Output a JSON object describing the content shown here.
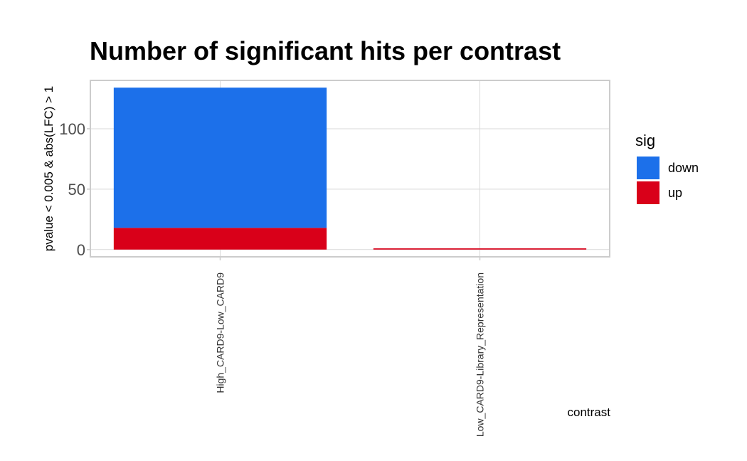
{
  "chart_data": {
    "type": "bar",
    "stacked": true,
    "title": "Number of significant hits per contrast",
    "xlabel": "contrast",
    "ylabel": "pvalue < 0.005 & abs(LFC)  > 1",
    "categories": [
      "High_CARD9-Low_CARD9",
      "Low_CARD9-Library_Representation"
    ],
    "series": [
      {
        "name": "up",
        "color": "#d90019",
        "values": [
          18,
          1
        ]
      },
      {
        "name": "down",
        "color": "#1c70ea",
        "values": [
          116,
          0
        ]
      }
    ],
    "yticks": [
      0,
      50,
      100
    ],
    "ylim": [
      -6,
      140
    ],
    "grid": true,
    "legend": {
      "title": "sig",
      "position": "right",
      "entries": [
        {
          "label": "down",
          "color": "#1c70ea"
        },
        {
          "label": "up",
          "color": "#d90019"
        }
      ]
    }
  }
}
